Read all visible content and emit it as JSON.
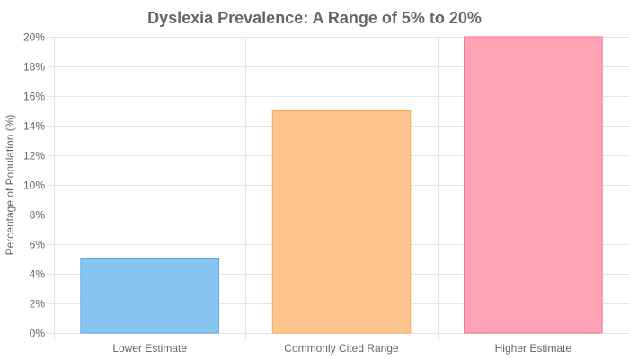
{
  "chart_data": {
    "type": "bar",
    "title": "Dyslexia Prevalence: A Range of 5% to 20%",
    "xlabel": "",
    "ylabel": "Percentage of Population (%)",
    "categories": [
      "Lower Estimate",
      "Commonly Cited Range",
      "Higher Estimate"
    ],
    "values": [
      5,
      15,
      20
    ],
    "ylim": [
      0,
      20
    ],
    "ytick_step": 2,
    "ytick_suffix": "%",
    "grid": true,
    "legend": "none",
    "colors": {
      "fill": [
        "#88c6f2",
        "#ffc58f",
        "#ffa3b6"
      ],
      "stroke": [
        "#5aa9e6",
        "#ffa64d",
        "#ff6f8f"
      ]
    }
  }
}
